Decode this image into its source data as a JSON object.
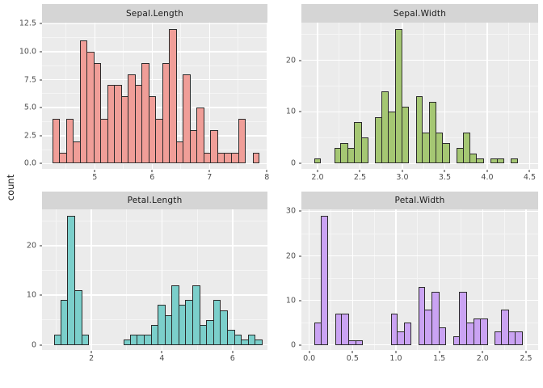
{
  "y_axis_title": "count",
  "style": {
    "background": "#FFFFFF",
    "panel_bg": "#EBEBEB",
    "strip_bg": "#D5D5D5",
    "grid_major": "#FFFFFF",
    "grid_minor": "#F5F5F5",
    "bar_stroke": "#2B2B2B",
    "tick_label_color": "#4D4D4D",
    "tick_mark_color": "#333333",
    "strip_text_color": "#1A1A1A",
    "axis_title_color": "#1A1A1A"
  },
  "chart_data": [
    {
      "type": "histogram",
      "title": "Sepal.Length",
      "fill": "#F09E98",
      "bin_start": 4.27,
      "bin_width": 0.12,
      "counts": [
        4,
        1,
        4,
        2,
        11,
        10,
        9,
        4,
        7,
        7,
        6,
        8,
        7,
        9,
        6,
        4,
        9,
        12,
        2,
        8,
        3,
        5,
        1,
        3,
        1,
        1,
        1,
        4,
        0,
        1
      ],
      "x_domain": [
        4.08,
        8.01
      ],
      "x_ticks": [
        5,
        6,
        7,
        8
      ],
      "x_tick_labels": [
        "5",
        "6",
        "7",
        "8"
      ],
      "y_ticks": [
        0,
        2.5,
        5,
        7.5,
        10,
        12.5
      ],
      "y_tick_labels": [
        "0.0",
        "2.5",
        "5.0",
        "7.5",
        "10.0",
        "12.5"
      ],
      "y_max_data": 12,
      "grid": true,
      "legend": "none"
    },
    {
      "type": "histogram",
      "title": "Sepal.Width",
      "fill": "#A5C773",
      "bin_start": 1.96,
      "bin_width": 0.08,
      "counts": [
        1,
        0,
        0,
        3,
        4,
        3,
        8,
        5,
        0,
        9,
        14,
        10,
        26,
        11,
        0,
        13,
        6,
        12,
        6,
        4,
        0,
        3,
        6,
        2,
        1,
        0,
        1,
        1,
        0,
        1
      ],
      "x_domain": [
        1.81,
        4.6
      ],
      "x_ticks": [
        2.0,
        2.5,
        3.0,
        3.5,
        4.0,
        4.5
      ],
      "x_tick_labels": [
        "2.0",
        "2.5",
        "3.0",
        "3.5",
        "4.0",
        "4.5"
      ],
      "y_ticks": [
        0,
        10,
        20
      ],
      "y_tick_labels": [
        "0",
        "10",
        "20"
      ],
      "y_max_data": 26,
      "grid": true,
      "legend": "none"
    },
    {
      "type": "histogram",
      "title": "Petal.Length",
      "fill": "#7BCFCB",
      "bin_start": 0.95,
      "bin_width": 0.1967,
      "counts": [
        2,
        9,
        26,
        11,
        2,
        0,
        0,
        0,
        0,
        0,
        1,
        2,
        2,
        2,
        4,
        8,
        6,
        12,
        8,
        9,
        12,
        4,
        5,
        9,
        7,
        3,
        2,
        1,
        2,
        1
      ],
      "x_domain": [
        0.6,
        6.99
      ],
      "x_ticks": [
        2,
        4,
        6
      ],
      "x_tick_labels": [
        "2",
        "4",
        "6"
      ],
      "y_ticks": [
        0,
        10,
        20
      ],
      "y_tick_labels": [
        "0",
        "10",
        "20"
      ],
      "y_max_data": 26,
      "grid": true,
      "legend": "none"
    },
    {
      "type": "histogram",
      "title": "Petal.Width",
      "fill": "#CAA3F3",
      "bin_start": 0.06,
      "bin_width": 0.08,
      "counts": [
        5,
        29,
        0,
        7,
        7,
        1,
        1,
        0,
        0,
        0,
        0,
        7,
        3,
        5,
        0,
        13,
        8,
        12,
        4,
        0,
        2,
        12,
        5,
        6,
        6,
        0,
        3,
        8,
        3,
        3
      ],
      "x_domain": [
        -0.09,
        2.64
      ],
      "x_ticks": [
        0,
        0.5,
        1,
        1.5,
        2,
        2.5
      ],
      "x_tick_labels": [
        "0.0",
        "0.5",
        "1.0",
        "1.5",
        "2.0",
        "2.5"
      ],
      "y_ticks": [
        0,
        10,
        20,
        30
      ],
      "y_tick_labels": [
        "0",
        "10",
        "20",
        "30"
      ],
      "y_max_data": 29,
      "grid": true,
      "legend": "none"
    }
  ]
}
